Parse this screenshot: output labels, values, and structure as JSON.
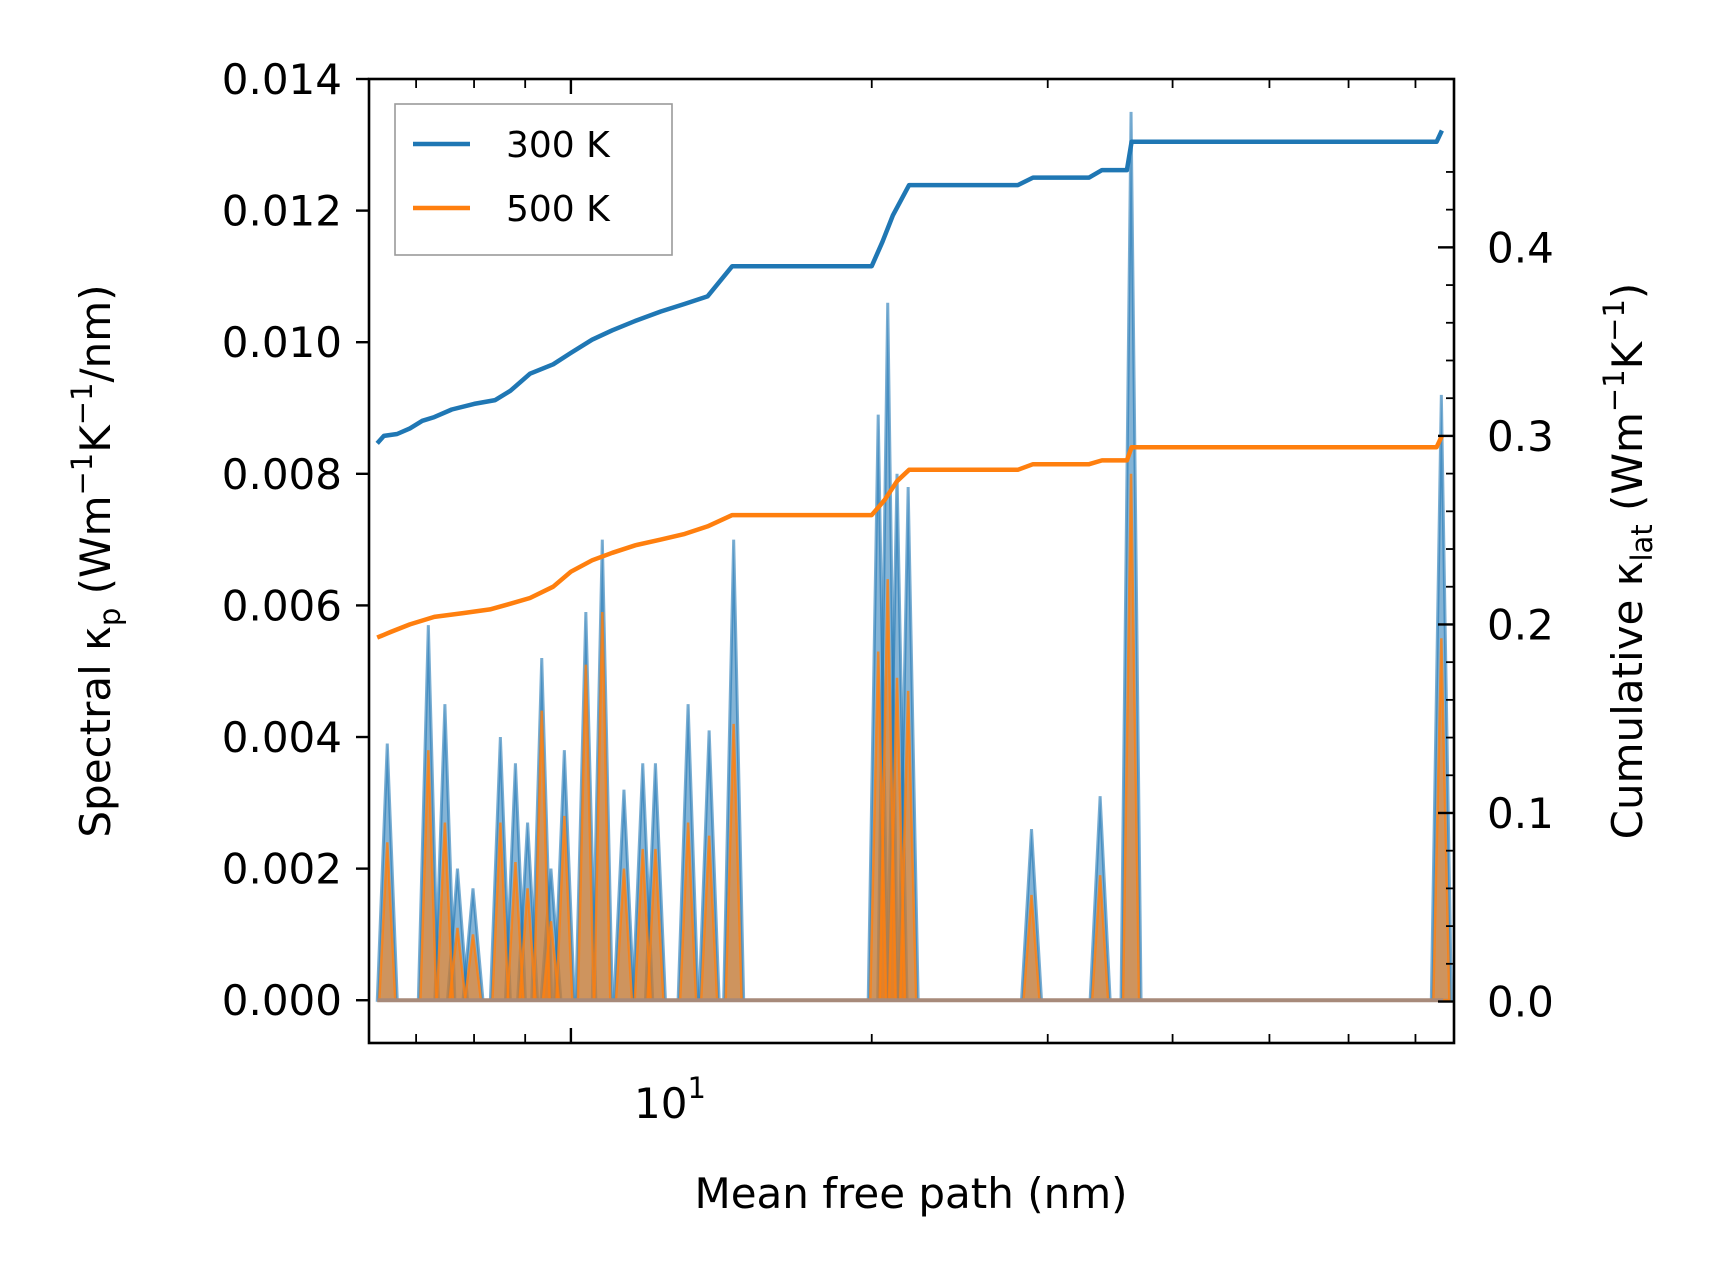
{
  "chart_data": {
    "type": "line",
    "xscale": "log",
    "xlabel": "Mean free path (nm)",
    "x_tick_labels": [
      {
        "value": 10,
        "base": "10",
        "exp": "1"
      }
    ],
    "y_left": {
      "label_parts": {
        "pre": "Spectral κ",
        "sub": "p",
        "post": " (Wm",
        "sup1": "−1",
        "mid": "K",
        "sup2": "−1",
        "end": "/nm)"
      },
      "ylim": [
        -0.00065,
        0.014
      ],
      "ticks": [
        0.0,
        0.002,
        0.004,
        0.006,
        0.008,
        0.01,
        0.012,
        0.014
      ],
      "tick_labels": [
        "0.000",
        "0.002",
        "0.004",
        "0.006",
        "0.008",
        "0.010",
        "0.012",
        "0.014"
      ]
    },
    "y_right": {
      "label_parts": {
        "pre": "Cumulative κ",
        "sub": "lat",
        "post": " (Wm",
        "sup1": "−1",
        "mid": "K",
        "sup2": "−1",
        "end": ")"
      },
      "ylim": [
        -0.022,
        0.4893
      ],
      "ticks": [
        0.0,
        0.1,
        0.2,
        0.3,
        0.4
      ],
      "tick_labels": [
        "0.0",
        "0.1",
        "0.2",
        "0.3",
        "0.4"
      ]
    },
    "xlim": [
      6.28,
      76.5
    ],
    "legend": {
      "position": "top-left",
      "entries": [
        "300 K",
        "500 K"
      ]
    },
    "colors": {
      "300 K": "#1f77b4",
      "500 K": "#ff7f0e",
      "fill_300": "#1f77b4",
      "fill_500": "#ff7f0e"
    },
    "spectral_peaks": [
      {
        "x": 6.55,
        "k300": 0.0039,
        "k500": 0.0024
      },
      {
        "x": 7.2,
        "k300": 0.0057,
        "k500": 0.0038
      },
      {
        "x": 7.48,
        "k300": 0.0045,
        "k500": 0.0027
      },
      {
        "x": 7.7,
        "k300": 0.002,
        "k500": 0.0011
      },
      {
        "x": 7.98,
        "k300": 0.0017,
        "k500": 0.001
      },
      {
        "x": 8.5,
        "k300": 0.004,
        "k500": 0.0027
      },
      {
        "x": 8.8,
        "k300": 0.0036,
        "k500": 0.0021
      },
      {
        "x": 9.05,
        "k300": 0.0027,
        "k500": 0.0017
      },
      {
        "x": 9.35,
        "k300": 0.0052,
        "k500": 0.0044
      },
      {
        "x": 9.55,
        "k300": 0.002,
        "k500": 0.0012
      },
      {
        "x": 9.85,
        "k300": 0.0038,
        "k500": 0.0028
      },
      {
        "x": 10.35,
        "k300": 0.0059,
        "k500": 0.0051
      },
      {
        "x": 10.75,
        "k300": 0.007,
        "k500": 0.0059
      },
      {
        "x": 11.3,
        "k300": 0.0032,
        "k500": 0.002
      },
      {
        "x": 11.8,
        "k300": 0.0036,
        "k500": 0.0023
      },
      {
        "x": 12.15,
        "k300": 0.0036,
        "k500": 0.0023
      },
      {
        "x": 13.1,
        "k300": 0.0045,
        "k500": 0.0027
      },
      {
        "x": 13.75,
        "k300": 0.0041,
        "k500": 0.0025
      },
      {
        "x": 14.55,
        "k300": 0.007,
        "k500": 0.0042
      },
      {
        "x": 20.3,
        "k300": 0.0089,
        "k500": 0.0053
      },
      {
        "x": 20.75,
        "k300": 0.0106,
        "k500": 0.0064
      },
      {
        "x": 21.2,
        "k300": 0.008,
        "k500": 0.0049
      },
      {
        "x": 21.75,
        "k300": 0.0078,
        "k500": 0.0047
      },
      {
        "x": 28.9,
        "k300": 0.0026,
        "k500": 0.0016
      },
      {
        "x": 33.85,
        "k300": 0.0031,
        "k500": 0.0019
      },
      {
        "x": 36.35,
        "k300": 0.0135,
        "k500": 0.008
      },
      {
        "x": 74.3,
        "k300": 0.0092,
        "k500": 0.0055
      }
    ],
    "cumulative_300K": [
      [
        6.4,
        0.296
      ],
      [
        6.5,
        0.3
      ],
      [
        6.7,
        0.301
      ],
      [
        6.9,
        0.304
      ],
      [
        7.1,
        0.308
      ],
      [
        7.3,
        0.31
      ],
      [
        7.6,
        0.314
      ],
      [
        8.0,
        0.317
      ],
      [
        8.4,
        0.319
      ],
      [
        8.7,
        0.324
      ],
      [
        9.1,
        0.333
      ],
      [
        9.6,
        0.338
      ],
      [
        10.0,
        0.344
      ],
      [
        10.5,
        0.351
      ],
      [
        11.0,
        0.356
      ],
      [
        11.6,
        0.361
      ],
      [
        12.3,
        0.366
      ],
      [
        13.0,
        0.37
      ],
      [
        13.7,
        0.374
      ],
      [
        14.5,
        0.39
      ],
      [
        20.0,
        0.39
      ],
      [
        20.5,
        0.403
      ],
      [
        21.0,
        0.417
      ],
      [
        21.8,
        0.433
      ],
      [
        28.0,
        0.433
      ],
      [
        29.0,
        0.437
      ],
      [
        33.0,
        0.437
      ],
      [
        34.0,
        0.441
      ],
      [
        36.0,
        0.441
      ],
      [
        36.4,
        0.456
      ],
      [
        73.5,
        0.456
      ],
      [
        74.4,
        0.462
      ],
      [
        76.5,
        0.462
      ]
    ],
    "cumulative_500K": [
      [
        6.4,
        0.193
      ],
      [
        6.6,
        0.196
      ],
      [
        6.9,
        0.2
      ],
      [
        7.3,
        0.204
      ],
      [
        7.8,
        0.206
      ],
      [
        8.3,
        0.208
      ],
      [
        8.7,
        0.211
      ],
      [
        9.1,
        0.214
      ],
      [
        9.6,
        0.22
      ],
      [
        10.0,
        0.228
      ],
      [
        10.5,
        0.234
      ],
      [
        11.0,
        0.238
      ],
      [
        11.6,
        0.242
      ],
      [
        12.3,
        0.245
      ],
      [
        13.0,
        0.248
      ],
      [
        13.7,
        0.252
      ],
      [
        14.5,
        0.258
      ],
      [
        20.0,
        0.258
      ],
      [
        20.6,
        0.266
      ],
      [
        21.2,
        0.276
      ],
      [
        21.8,
        0.282
      ],
      [
        28.0,
        0.282
      ],
      [
        29.0,
        0.285
      ],
      [
        33.0,
        0.285
      ],
      [
        34.0,
        0.287
      ],
      [
        36.0,
        0.287
      ],
      [
        36.4,
        0.294
      ],
      [
        73.5,
        0.294
      ],
      [
        74.4,
        0.3
      ],
      [
        76.5,
        0.3
      ]
    ]
  }
}
